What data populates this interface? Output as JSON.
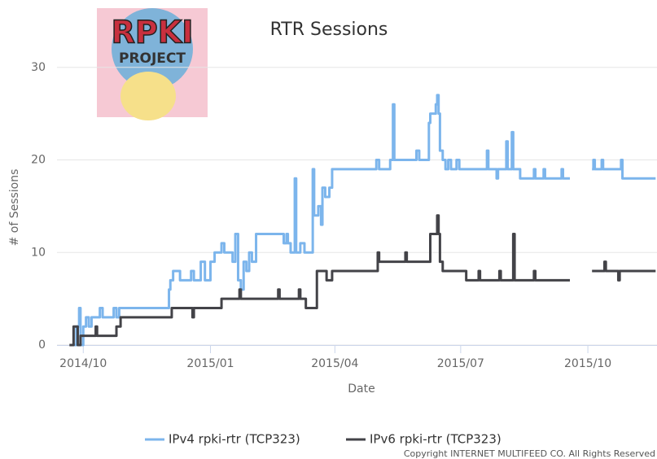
{
  "logo": {
    "line1": "RPKI",
    "line2": "PROJECT"
  },
  "copyright": "Copyright INTERNET MULTIFEED CO. All Rights Reserved",
  "chart_data": {
    "type": "line",
    "step": true,
    "title": "RTR Sessions",
    "x_label": "Date",
    "y_label": "# of Sessions",
    "xlim": [
      -19,
      415
    ],
    "xticks": [
      {
        "value": 0,
        "label": "2014/10"
      },
      {
        "value": 92,
        "label": "2015/01"
      },
      {
        "value": 182,
        "label": "2015/04"
      },
      {
        "value": 273,
        "label": "2015/07"
      },
      {
        "value": 365,
        "label": "2015/10"
      }
    ],
    "ylim": [
      0,
      32
    ],
    "yticks": [
      0,
      10,
      20,
      30
    ],
    "grid": true,
    "legend": "bottom",
    "series": [
      {
        "name": "IPv4 rpki-rtr (TCP323)",
        "color": "#7cb5ec",
        "x": [
          -7,
          -5,
          -3,
          -2,
          0,
          2,
          4,
          6,
          10,
          12,
          14,
          18,
          22,
          24,
          26,
          60,
          62,
          63,
          65,
          70,
          78,
          80,
          85,
          88,
          92,
          95,
          100,
          102,
          108,
          110,
          112,
          114,
          116,
          118,
          120,
          122,
          125,
          145,
          147,
          148,
          150,
          153,
          154,
          157,
          160,
          165,
          166,
          167,
          170,
          172,
          173,
          175,
          178,
          180,
          210,
          212,
          214,
          222,
          224,
          225,
          240,
          241,
          243,
          250,
          251,
          254,
          255,
          256,
          257,
          258,
          260,
          262,
          264,
          266,
          270,
          272,
          290,
          292,
          293,
          297,
          299,
          300,
          305,
          306,
          307,
          310,
          311,
          315,
          316,
          325,
          326,
          327,
          332,
          333,
          334,
          345,
          346,
          347,
          352,
          353,
          368,
          369,
          370,
          375,
          376,
          388,
          389,
          390,
          414
        ],
        "values": [
          0,
          2,
          4,
          0,
          2,
          3,
          2,
          3,
          3,
          4,
          3,
          3,
          4,
          3,
          4,
          4,
          6,
          7,
          8,
          7,
          8,
          7,
          9,
          7,
          9,
          10,
          11,
          10,
          9,
          12,
          7,
          6,
          9,
          8,
          10,
          9,
          12,
          11,
          12,
          11,
          10,
          18,
          10,
          11,
          10,
          10,
          19,
          14,
          15,
          13,
          17,
          16,
          17,
          19,
          19,
          20,
          19,
          20,
          26,
          20,
          20,
          21,
          20,
          24,
          25,
          25,
          26,
          27,
          25,
          21,
          20,
          19,
          20,
          19,
          20,
          19,
          19,
          21,
          19,
          19,
          18,
          19,
          19,
          22,
          19,
          23,
          19,
          19,
          18,
          18,
          19,
          18,
          18,
          19,
          18,
          18,
          19,
          18,
          18,
          null,
          19,
          20,
          19,
          20,
          19,
          19,
          20,
          18,
          18
        ]
      },
      {
        "name": "IPv6 rpki-rtr (TCP323)",
        "color": "#434348",
        "x": [
          -10,
          -7,
          -4,
          -2,
          8,
          9,
          10,
          22,
          24,
          27,
          62,
          64,
          78,
          79,
          80,
          98,
          100,
          112,
          113,
          114,
          140,
          141,
          142,
          155,
          156,
          157,
          160,
          161,
          168,
          169,
          174,
          176,
          180,
          212,
          213,
          214,
          232,
          233,
          234,
          250,
          251,
          254,
          256,
          257,
          258,
          260,
          276,
          277,
          285,
          286,
          287,
          300,
          301,
          302,
          310,
          311,
          312,
          325,
          326,
          327,
          352,
          353,
          368,
          376,
          377,
          378,
          386,
          387,
          388,
          414
        ],
        "values": [
          0,
          2,
          0,
          1,
          1,
          2,
          1,
          1,
          2,
          3,
          3,
          4,
          4,
          3,
          4,
          4,
          5,
          5,
          6,
          5,
          5,
          6,
          5,
          5,
          6,
          5,
          5,
          4,
          4,
          8,
          8,
          7,
          8,
          8,
          10,
          9,
          9,
          10,
          9,
          9,
          12,
          12,
          14,
          12,
          9,
          8,
          8,
          7,
          7,
          8,
          7,
          7,
          8,
          7,
          7,
          12,
          7,
          7,
          8,
          7,
          7,
          null,
          8,
          8,
          9,
          8,
          8,
          7,
          8,
          8
        ]
      }
    ]
  }
}
